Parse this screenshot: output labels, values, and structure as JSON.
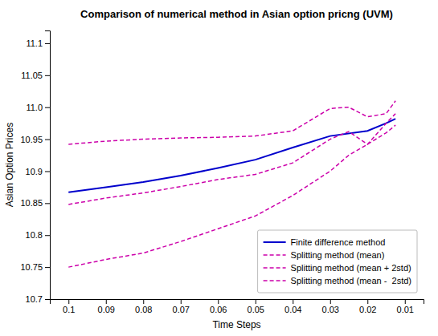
{
  "chart_data": {
    "type": "line",
    "title": "Comparison of numerical method in Asian option pricng (UVM)",
    "xlabel": "Time Steps",
    "ylabel": "Asian Option Prices",
    "xlim": [
      0.105,
      0.005
    ],
    "ylim": [
      10.7,
      11.12
    ],
    "xticks": [
      0.1,
      0.09,
      0.08,
      0.07,
      0.06,
      0.05,
      0.04,
      0.03,
      0.02,
      0.01
    ],
    "yticks": [
      10.7,
      10.75,
      10.8,
      10.85,
      10.9,
      10.95,
      {
        "value": 11,
        "label": "11.0"
      },
      11.05,
      11.1
    ],
    "grid": false,
    "legend": "lower right",
    "series": [
      {
        "name": "Finite difference method",
        "color": "#0000cc",
        "line_style": "solid",
        "x": [
          0.1,
          0.09,
          0.08,
          0.07,
          0.06,
          0.05,
          0.04,
          0.03,
          0.02,
          0.015,
          0.0125
        ],
        "values": [
          10.867,
          10.875,
          10.883,
          10.893,
          10.905,
          10.918,
          10.937,
          10.955,
          10.963,
          10.975,
          10.982
        ]
      },
      {
        "name": "Splitting method (mean)",
        "color": "#cc00aa",
        "line_style": "dashed",
        "x": [
          0.1,
          0.09,
          0.08,
          0.07,
          0.06,
          0.05,
          0.04,
          0.03,
          0.025,
          0.02,
          0.015,
          0.0125
        ],
        "values": [
          10.848,
          10.858,
          10.866,
          10.876,
          10.887,
          10.895,
          10.913,
          10.95,
          10.962,
          10.942,
          10.975,
          10.99
        ]
      },
      {
        "name": "Splitting method (mean + 2std)",
        "color": "#cc00aa",
        "line_style": "dashed",
        "x": [
          0.1,
          0.09,
          0.08,
          0.07,
          0.06,
          0.05,
          0.04,
          0.03,
          0.025,
          0.02,
          0.015,
          0.0125
        ],
        "values": [
          10.942,
          10.947,
          10.95,
          10.952,
          10.953,
          10.955,
          10.963,
          10.998,
          11.0,
          10.985,
          10.99,
          11.01
        ]
      },
      {
        "name": "Splitting method (mean -  2std)",
        "color": "#cc00aa",
        "line_style": "dashed",
        "x": [
          0.1,
          0.09,
          0.08,
          0.07,
          0.06,
          0.05,
          0.04,
          0.03,
          0.025,
          0.02,
          0.015,
          0.0125
        ],
        "values": [
          10.75,
          10.762,
          10.772,
          10.79,
          10.81,
          10.83,
          10.862,
          10.9,
          10.925,
          10.942,
          10.96,
          10.972
        ]
      }
    ]
  }
}
